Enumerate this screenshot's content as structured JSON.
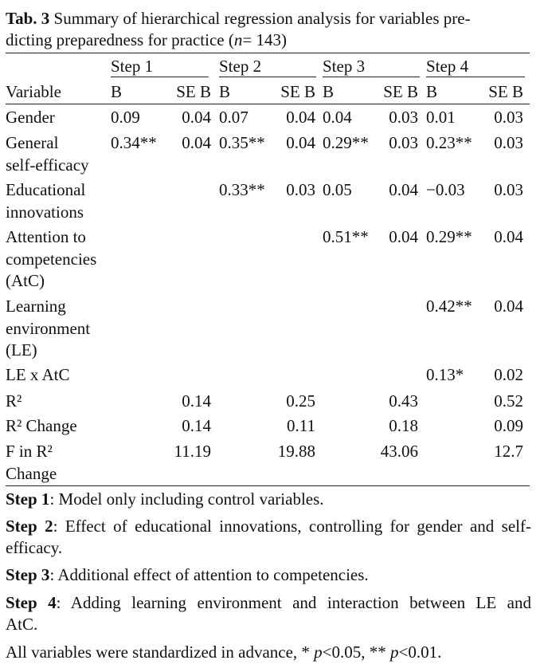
{
  "caption": {
    "label": "Tab. 3",
    "text_line1": "Summary of hierarchical regression analysis for variables pre-",
    "text_line2_prefix": "dicting preparedness for practice (",
    "n_symbol": "n",
    "text_line2_suffix": "= 143)"
  },
  "table": {
    "steps": [
      "Step 1",
      "Step 2",
      "Step 3",
      "Step 4"
    ],
    "header": {
      "variable": "Variable",
      "b": "B",
      "seb": "SE B"
    },
    "rows": [
      {
        "label_lines": [
          "Gender"
        ],
        "values": [
          "0.09",
          "0.04",
          "0.07",
          "0.04",
          "0.04",
          "0.03",
          "0.01",
          "0.03"
        ]
      },
      {
        "label_lines": [
          "General",
          "self-efficacy"
        ],
        "values": [
          "0.34**",
          "0.04",
          "0.35**",
          "0.04",
          "0.29**",
          "0.03",
          "0.23**",
          "0.03"
        ]
      },
      {
        "label_lines": [
          "Educational",
          "innovations"
        ],
        "values": [
          "",
          "",
          "0.33**",
          "0.03",
          "0.05",
          "0.04",
          "−0.03",
          "0.03"
        ]
      },
      {
        "label_lines": [
          "Attention to",
          "competencies",
          "(AtC)"
        ],
        "values": [
          "",
          "",
          "",
          "",
          "0.51**",
          "0.04",
          "0.29**",
          "0.04"
        ]
      },
      {
        "label_lines": [
          "Learning",
          "environment",
          "(LE)"
        ],
        "values": [
          "",
          "",
          "",
          "",
          "",
          "",
          "0.42**",
          "0.04"
        ]
      },
      {
        "label_lines": [
          "LE x AtC"
        ],
        "values": [
          "",
          "",
          "",
          "",
          "",
          "",
          "0.13*",
          "0.02"
        ]
      },
      {
        "label_lines": [
          "R²"
        ],
        "values": [
          "",
          "0.14",
          "",
          "0.25",
          "",
          "0.43",
          "",
          "0.52"
        ]
      },
      {
        "label_lines": [
          "R² Change"
        ],
        "values": [
          "",
          "0.14",
          "",
          "0.11",
          "",
          "0.18",
          "",
          "0.09"
        ]
      },
      {
        "label_lines": [
          "F in R²",
          "Change"
        ],
        "values": [
          "",
          "11.19",
          "",
          "19.88",
          "",
          "43.06",
          "",
          "12.7"
        ]
      }
    ]
  },
  "notes": {
    "step1_label": "Step 1",
    "step1_text": ": Model only including control variables.",
    "step2_label": "Step 2",
    "step2_text": ": Effect of educational innovations, controlling for gender and self-efficacy.",
    "step3_label": "Step 3",
    "step3_text": ": Additional effect of attention to competencies.",
    "step4_label": "Step 4",
    "step4_text": ": Adding learning environment and interaction between LE and AtC.",
    "footnote_prefix": "All variables were standardized in advance, * ",
    "p_symbol": "p",
    "footnote_mid": "<0.05, ** ",
    "footnote_suffix": "<0.01."
  }
}
